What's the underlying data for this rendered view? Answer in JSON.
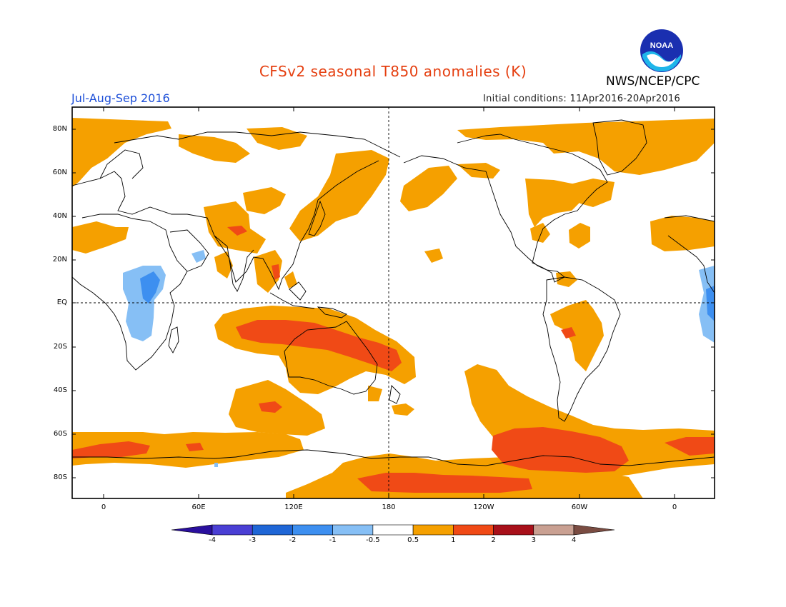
{
  "title": "CFSv2 seasonal T850 anomalies (K)",
  "organization": "NWS/NCEP/CPC",
  "logo_text": "NOAA",
  "period": "Jul-Aug-Sep 2016",
  "initial_conditions": "Initial conditions: 11Apr2016-20Apr2016",
  "lat_labels": [
    "80N",
    "60N",
    "40N",
    "20N",
    "EQ",
    "20S",
    "40S",
    "60S",
    "80S"
  ],
  "lon_labels": [
    "0",
    "60E",
    "120E",
    "180",
    "120W",
    "60W",
    "0"
  ],
  "colorbar": {
    "labels": [
      "-4",
      "-3",
      "-2",
      "-1",
      "-0.5",
      "0.5",
      "1",
      "2",
      "3",
      "4"
    ],
    "colors": [
      "#2a0f9e",
      "#4a3fd4",
      "#1f66d6",
      "#3d8ff0",
      "#86bff5",
      "#ffffff",
      "#f5a000",
      "#f04a16",
      "#a8101a",
      "#c9a092",
      "#7a4c42"
    ]
  }
}
